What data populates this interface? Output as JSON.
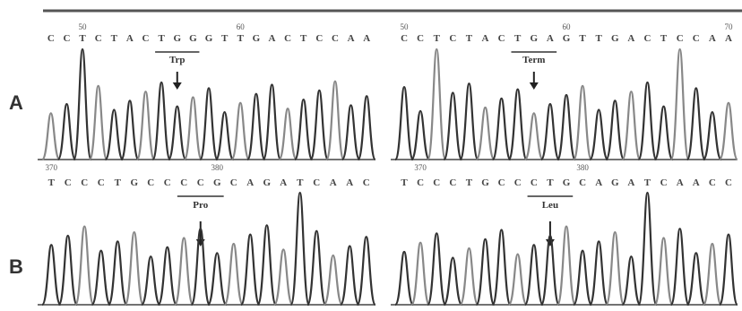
{
  "rows": [
    {
      "label": "A",
      "panels": [
        {
          "sequence": "CCTCTACTGGGTTGACTCCAA",
          "positions": [
            "50",
            "60"
          ],
          "codon": "Trp"
        },
        {
          "sequence": "CCTCTACTGAGTTGACTCCAA",
          "positions": [
            "50",
            "60",
            "70"
          ],
          "codon": "Term"
        }
      ]
    },
    {
      "label": "B",
      "panels": [
        {
          "sequence": "TCCCTGCCCCGCAGATCAAC",
          "positions": [
            "370",
            "380"
          ],
          "codon": "Pro"
        },
        {
          "sequence": "TCCCTGCCCTGCAGATCAACC",
          "positions": [
            "370",
            "380"
          ],
          "codon": "Leu"
        }
      ]
    }
  ]
}
